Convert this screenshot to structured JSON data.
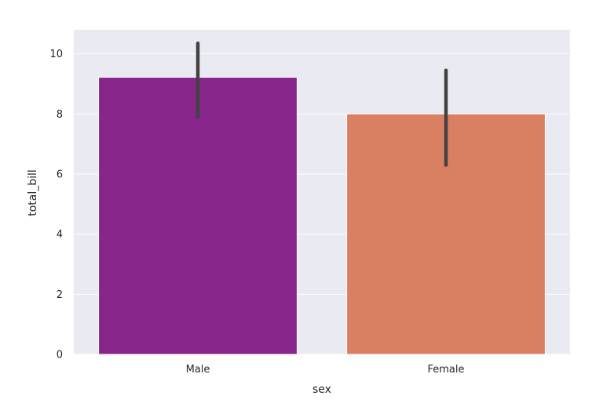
{
  "chart_data": {
    "type": "bar",
    "title": "",
    "xlabel": "sex",
    "ylabel": "total_bill",
    "categories": [
      "Male",
      "Female"
    ],
    "values": [
      9.22,
      8.0
    ],
    "error_low": [
      7.9,
      6.3
    ],
    "error_high": [
      10.35,
      9.45
    ],
    "colors": [
      "#87258B",
      "#D98063"
    ],
    "error_color": "#424242",
    "background_color": "#EAEAF2",
    "grid": true,
    "grid_axis": "y",
    "ylim": [
      0,
      10.8
    ],
    "yticks": [
      0,
      2,
      4,
      6,
      8,
      10
    ]
  }
}
